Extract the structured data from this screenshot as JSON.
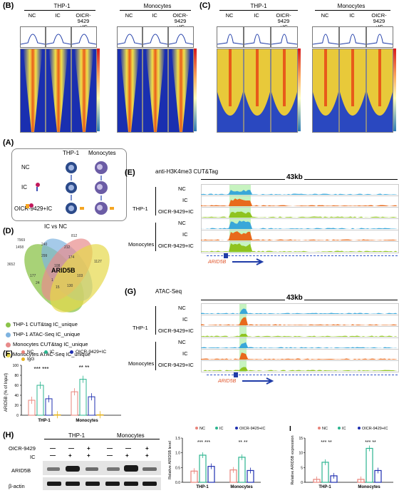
{
  "panelB": {
    "label": "(B)",
    "group1": "THP-1",
    "group2": "Monocytes",
    "conditions": [
      "NC",
      "IC",
      "OICR-9429\n+IC"
    ],
    "cbar_ticks": [
      "100",
      "80",
      "60",
      "40",
      "20",
      "0"
    ]
  },
  "panelC": {
    "label": "(C)",
    "group1": "THP-1",
    "group2": "Monocytes",
    "conditions": [
      "NC",
      "IC",
      "OICR-9429\n+IC"
    ]
  },
  "panelA": {
    "label": "(A)",
    "col1": "THP-1",
    "col2": "Monocytes",
    "rows": [
      "NC",
      "IC",
      "OICR-9429+IC"
    ]
  },
  "panelD": {
    "label": "(D)",
    "title": "IC vs NC",
    "center": "ARID5B",
    "numbers": [
      "7969",
      "812",
      "1458",
      "240",
      "212",
      "3652",
      "1127",
      "299",
      "174",
      "108",
      "177",
      "103",
      "24",
      "15",
      "130",
      "1"
    ],
    "legend": [
      {
        "text": "THP-1 CUT&tag IC_unique",
        "color": "#8bc34a"
      },
      {
        "text": "THP-1 ATAC-Seq IC_unique",
        "color": "#7fb3e0"
      },
      {
        "text": "Monocytes CUT&tag IC_unique",
        "color": "#e88b8b"
      },
      {
        "text": "Monocytes ATAC-Seq IC_unique",
        "color": "#e6d84a"
      }
    ]
  },
  "panelE": {
    "label": "(E)",
    "title": "anti-H3K4me3 CUT&Tag",
    "scale": "43kb",
    "group1": "THP-1",
    "group2": "Monocytes",
    "tracks": [
      "NC",
      "IC",
      "OICR-9429+IC",
      "NC",
      "IC",
      "OICR-9429+IC"
    ],
    "gene": "ARID5B"
  },
  "panelG": {
    "label": "(G)",
    "title": "ATAC-Seq",
    "scale": "43kb",
    "group1": "THP-1",
    "group2": "Monocytes",
    "tracks": [
      "NC",
      "IC",
      "OICR-9429+IC",
      "NC",
      "IC",
      "OICR-9429+IC"
    ],
    "gene": "ARID5B"
  },
  "panelF": {
    "label": "(F)",
    "legend": [
      "NC",
      "IC",
      "OICR-9429+IC",
      "IgG"
    ],
    "ylabel": "ARID5B (% of Input)",
    "yticks": [
      "0",
      "20",
      "40",
      "60",
      "80",
      "100"
    ],
    "groups": [
      "THP-1",
      "Monocytes"
    ],
    "sig1": "*** ***",
    "sig2": "** **"
  },
  "panelH": {
    "label": "(H)",
    "group1": "THP-1",
    "group2": "Monocytes",
    "row1": "OICR-9429",
    "row2": "IC",
    "row1_marks": [
      "—",
      "—",
      "+",
      "—",
      "—",
      "+"
    ],
    "row2_marks": [
      "—",
      "+",
      "+",
      "—",
      "+",
      "+"
    ],
    "band1": "ARID5B",
    "band2": "β-actin"
  },
  "chart_data": [
    {
      "type": "bar",
      "categories": [
        "THP-1",
        "Monocytes"
      ],
      "series": [
        {
          "name": "NC",
          "values": [
            0.38,
            0.42
          ]
        },
        {
          "name": "IC",
          "values": [
            0.92,
            0.85
          ]
        },
        {
          "name": "OICR-9429+IC",
          "values": [
            0.54,
            0.4
          ]
        }
      ],
      "ylabel": "Relative ARID5B level",
      "yticks": [
        "0.0",
        "0.5",
        "1.0",
        "1.5"
      ],
      "ylim": [
        0,
        1.5
      ],
      "legend": [
        "NC",
        "IC",
        "OICR-9429+IC"
      ],
      "sig": [
        "*** ***",
        "** **"
      ]
    },
    {
      "type": "bar",
      "categories": [
        "THP-1",
        "Monocytes"
      ],
      "series": [
        {
          "name": "NC",
          "values": [
            1,
            1
          ]
        },
        {
          "name": "IC",
          "values": [
            6.8,
            11.5
          ]
        },
        {
          "name": "OICR-9429+IC",
          "values": [
            2.2,
            4.0
          ]
        }
      ],
      "label": "I",
      "ylabel": "Relative ARID5B expression",
      "yticks": [
        "0",
        "5",
        "10",
        "15"
      ],
      "ylim": [
        0,
        15
      ],
      "legend": [
        "NC",
        "IC",
        "OICR-9429+IC"
      ],
      "sig": [
        "*** **",
        "*** **"
      ]
    }
  ]
}
